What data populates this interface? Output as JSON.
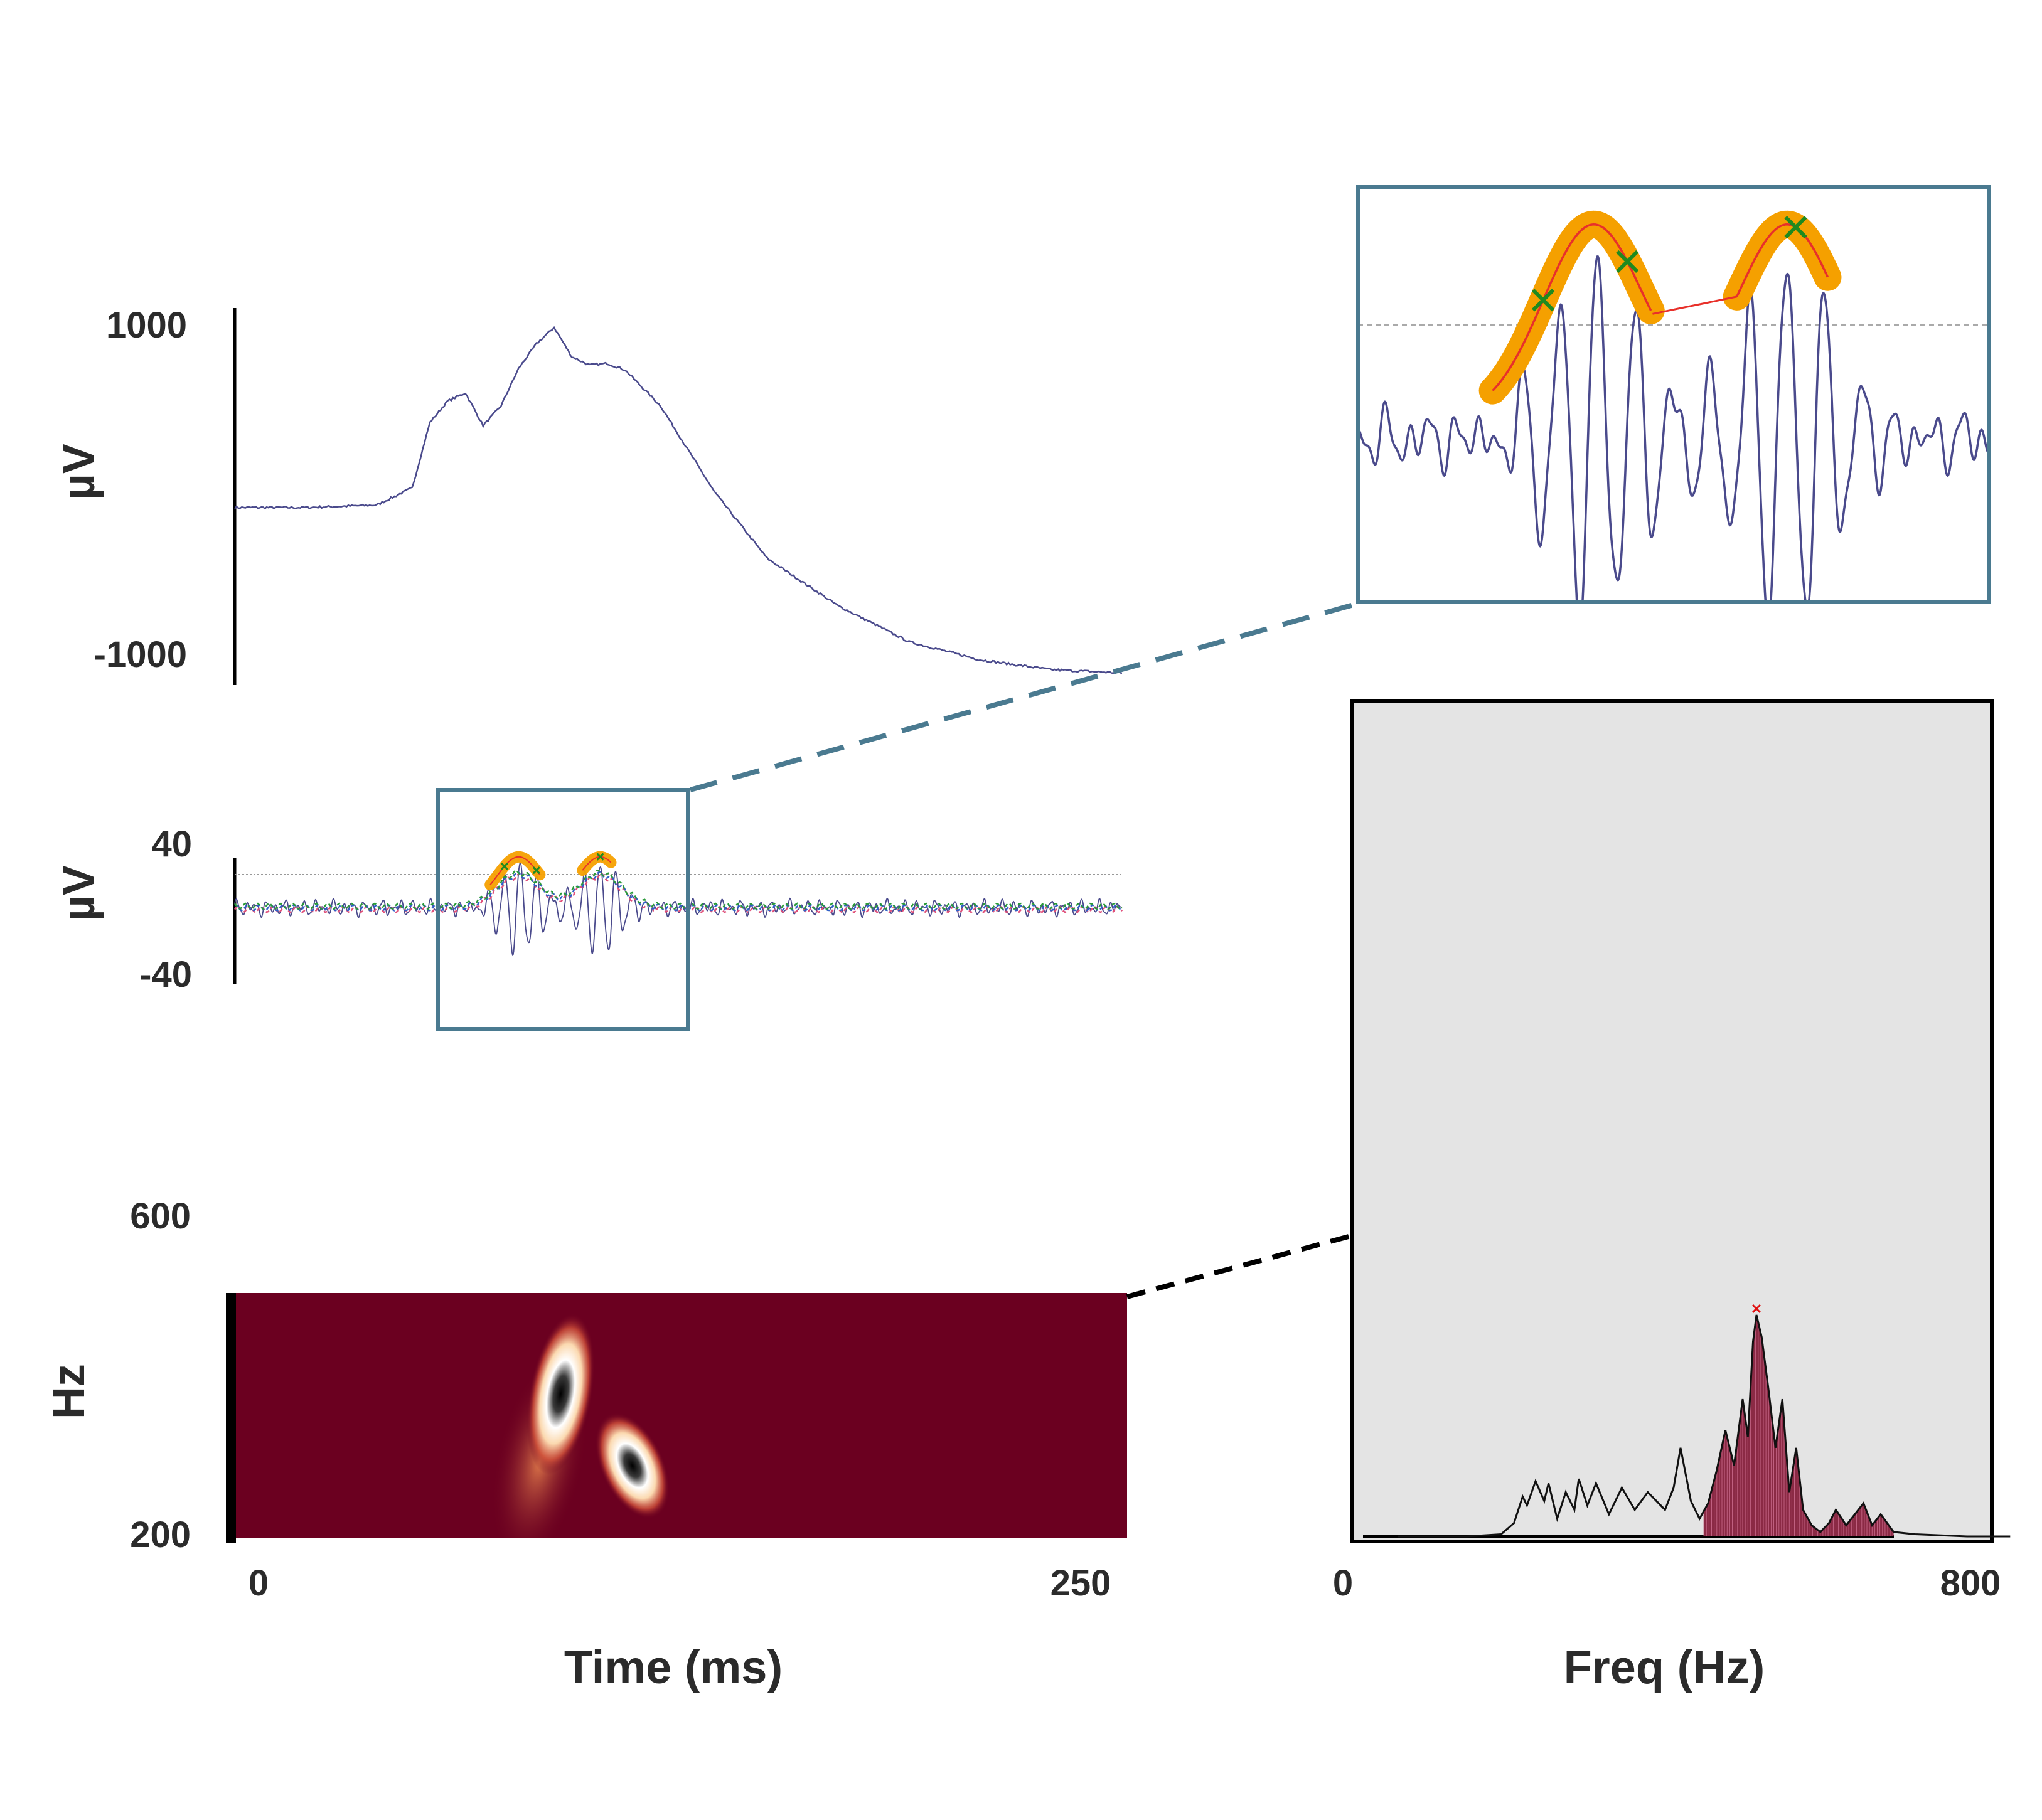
{
  "labels": {
    "time_xlabel": "Time (ms)",
    "freq_xlabel": "Freq (Hz)",
    "uv_label_raw": "µV",
    "uv_label_filtered": "µV",
    "hz_label": "Hz"
  },
  "colors": {
    "trace": "#4a4a8c",
    "detection_highlight": "#f5a000",
    "envelope": "#e8302a",
    "peak_marker": "#1f8a1f",
    "zoom_box": "#4a7a90",
    "tf_background": "#6b0020",
    "spectrum_fill": "#8b2a45",
    "spectrum_panel_bg": "#e4e4e4"
  },
  "chart_data": [
    {
      "type": "line",
      "panel": "raw-signal",
      "ylabel": "µV",
      "ylim": [
        -1000,
        1000
      ],
      "yticks": [
        "1000",
        "-1000"
      ],
      "xlim": [
        0,
        250
      ],
      "x": [
        0,
        20,
        40,
        50,
        55,
        60,
        65,
        70,
        75,
        80,
        85,
        90,
        95,
        100,
        105,
        110,
        120,
        135,
        150,
        170,
        190,
        210,
        230,
        250
      ],
      "y": [
        0,
        0,
        15,
        120,
        520,
        650,
        700,
        500,
        620,
        850,
        1000,
        1100,
        920,
        870,
        880,
        840,
        620,
        100,
        -310,
        -600,
        -820,
        -930,
        -990,
        -1010
      ]
    },
    {
      "type": "line",
      "panel": "filtered-signal",
      "ylabel": "µV",
      "ylim": [
        -40,
        40
      ],
      "yticks": [
        "40",
        "-40"
      ],
      "xlim": [
        0,
        250
      ],
      "threshold": 20,
      "burst_window_ms": [
        57,
        127
      ],
      "peaks_ms": [
        76,
        85,
        103
      ]
    },
    {
      "type": "heatmap",
      "panel": "time-frequency",
      "ylabel": "Hz",
      "yticks": [
        "600",
        "200"
      ],
      "xticks": [
        "0",
        "250"
      ],
      "xlabel": "Time (ms)",
      "xlim": [
        0,
        250
      ],
      "ylim": [
        200,
        600
      ],
      "blobs": [
        {
          "time_ms": 92,
          "freq_hz": 440
        },
        {
          "time_ms": 112,
          "freq_hz": 320
        }
      ]
    },
    {
      "type": "area",
      "panel": "spectrum",
      "xlabel": "Freq (Hz)",
      "xticks": [
        "0",
        "800"
      ],
      "xlim": [
        0,
        800
      ],
      "peak_freq_hz": 456,
      "band_hz": [
        395,
        615
      ],
      "x": [
        40,
        120,
        160,
        175,
        185,
        190,
        200,
        210,
        215,
        225,
        235,
        245,
        250,
        260,
        270,
        285,
        300,
        315,
        330,
        350,
        360,
        368,
        380,
        390,
        400,
        410,
        420,
        430,
        440,
        446,
        452,
        456,
        462,
        470,
        478,
        486,
        494,
        502,
        510,
        520,
        530,
        540,
        548,
        560,
        570,
        580,
        590,
        600,
        615,
        640,
        700,
        750
      ],
      "y": [
        0,
        0,
        0.01,
        0.06,
        0.18,
        0.14,
        0.25,
        0.16,
        0.24,
        0.08,
        0.2,
        0.12,
        0.26,
        0.14,
        0.24,
        0.1,
        0.22,
        0.12,
        0.2,
        0.12,
        0.22,
        0.4,
        0.16,
        0.08,
        0.15,
        0.3,
        0.48,
        0.32,
        0.62,
        0.45,
        0.88,
        1.0,
        0.9,
        0.66,
        0.4,
        0.62,
        0.2,
        0.4,
        0.12,
        0.05,
        0.02,
        0.06,
        0.12,
        0.05,
        0.1,
        0.15,
        0.05,
        0.1,
        0.02,
        0.01,
        0,
        0
      ]
    }
  ]
}
